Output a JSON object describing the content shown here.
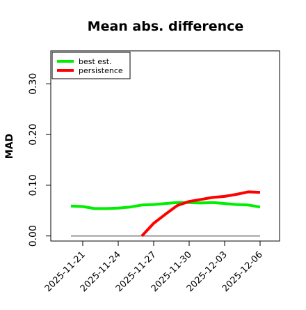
{
  "chart_data": {
    "type": "line",
    "title": "Mean abs. difference",
    "xlabel": "",
    "ylabel": "MAD",
    "x": [
      "2025-11-20",
      "2025-11-21",
      "2025-11-22",
      "2025-11-23",
      "2025-11-24",
      "2025-11-25",
      "2025-11-26",
      "2025-11-27",
      "2025-11-28",
      "2025-11-29",
      "2025-11-30",
      "2025-12-01",
      "2025-12-02",
      "2025-12-03",
      "2025-12-04",
      "2025-12-05",
      "2025-12-06"
    ],
    "x_ticks": [
      "2025-11-21",
      "2025-11-24",
      "2025-11-27",
      "2025-11-30",
      "2025-12-03",
      "2025-12-06"
    ],
    "y_ticks": [
      "0.00",
      "0.10",
      "0.20",
      "0.30"
    ],
    "ylim": [
      -0.01,
      0.365
    ],
    "grid": false,
    "legend_position": "top-left",
    "series": [
      {
        "name": "best est.",
        "color": "#00ee00",
        "values": [
          0.059,
          0.058,
          0.054,
          0.054,
          0.055,
          0.057,
          0.061,
          0.062,
          0.064,
          0.066,
          0.066,
          0.065,
          0.066,
          0.064,
          0.062,
          0.061,
          0.057
        ]
      },
      {
        "name": "persistence",
        "color": "#ff0000",
        "values": [
          null,
          null,
          null,
          null,
          null,
          null,
          0.0,
          0.025,
          0.043,
          0.06,
          0.068,
          0.072,
          0.076,
          0.078,
          0.082,
          0.087,
          0.086
        ]
      }
    ],
    "reference_line": {
      "y": 0.0,
      "color": "#808080"
    }
  }
}
